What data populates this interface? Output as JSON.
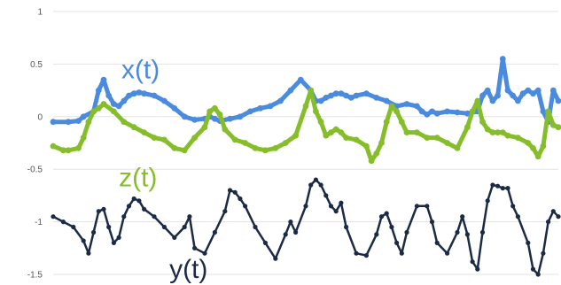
{
  "chart_data": {
    "type": "line",
    "title": "",
    "xlabel": "",
    "ylabel": "",
    "ylim": [
      -1.5,
      1
    ],
    "xlim": [
      0,
      100
    ],
    "grid": true,
    "legend": "none",
    "yticks": [
      {
        "value": 1,
        "label": "1"
      },
      {
        "value": 0.5,
        "label": "0.5"
      },
      {
        "value": 0,
        "label": "0"
      },
      {
        "value": -0.5,
        "label": "-0.5"
      },
      {
        "value": -1,
        "label": "-1"
      },
      {
        "value": -1.5,
        "label": "-1.5"
      }
    ],
    "series": [
      {
        "name": "x(t)",
        "color": "#4a8be0",
        "label_at": {
          "x": 13.5,
          "y": 0.45
        },
        "x": [
          0,
          3,
          5,
          6,
          8,
          9,
          10,
          11,
          12,
          13,
          14,
          15,
          16,
          17,
          18,
          20,
          22,
          24,
          26,
          28,
          30,
          31,
          32,
          33,
          35,
          37,
          39,
          41,
          43,
          45,
          47,
          49,
          51,
          52,
          53,
          54,
          55,
          56,
          57,
          58,
          59,
          60,
          62,
          64,
          66,
          68,
          70,
          72,
          73,
          74,
          75,
          76,
          78,
          80,
          82,
          84,
          85,
          86,
          87,
          88,
          89,
          90,
          91,
          92,
          93,
          94,
          95,
          96,
          97,
          98,
          99,
          100
        ],
        "values": [
          -0.05,
          -0.05,
          -0.04,
          0,
          0.05,
          0.25,
          0.35,
          0.2,
          0.12,
          0.1,
          0.15,
          0.2,
          0.22,
          0.23,
          0.22,
          0.2,
          0.15,
          0.08,
          0.0,
          -0.03,
          -0.02,
          0,
          -0.02,
          -0.04,
          -0.02,
          0.0,
          0.05,
          0.08,
          0.1,
          0.15,
          0.25,
          0.35,
          0.25,
          0.15,
          0.15,
          0.18,
          0.2,
          0.22,
          0.22,
          0.2,
          0.18,
          0.2,
          0.22,
          0.18,
          0.15,
          0.1,
          0.12,
          0.1,
          0.05,
          0.02,
          0.05,
          0.03,
          0.05,
          0.04,
          0.03,
          0.05,
          0.2,
          0.25,
          0.15,
          0.2,
          0.55,
          0.25,
          0.2,
          0.15,
          0.22,
          0.25,
          0.22,
          0.25,
          0.05,
          -0.05,
          0.25,
          0.15
        ]
      },
      {
        "name": "z(t)",
        "color": "#86bd2a",
        "label_at": {
          "x": 13,
          "y": -0.58
        },
        "x": [
          0,
          2,
          3,
          5,
          6,
          7,
          8,
          9,
          10,
          12,
          14,
          16,
          18,
          20,
          22,
          24,
          26,
          28,
          30,
          31,
          32,
          33,
          34,
          36,
          38,
          40,
          42,
          44,
          46,
          48,
          50,
          51,
          52,
          53,
          54,
          55,
          56,
          57,
          58,
          60,
          62,
          63,
          64,
          65,
          66,
          67,
          68,
          69,
          70,
          72,
          74,
          76,
          78,
          80,
          82,
          83,
          84,
          85,
          86,
          87,
          88,
          89,
          90,
          92,
          94,
          95,
          96,
          97,
          98,
          99,
          100
        ],
        "values": [
          -0.28,
          -0.32,
          -0.32,
          -0.3,
          -0.2,
          -0.05,
          0.05,
          0.08,
          0.12,
          0.05,
          -0.05,
          -0.1,
          -0.15,
          -0.2,
          -0.22,
          -0.3,
          -0.32,
          -0.2,
          -0.1,
          0.05,
          0.08,
          0.02,
          -0.12,
          -0.22,
          -0.25,
          -0.3,
          -0.32,
          -0.3,
          -0.25,
          -0.18,
          0.1,
          0.25,
          0.05,
          -0.05,
          -0.18,
          -0.15,
          -0.12,
          -0.15,
          -0.2,
          -0.22,
          -0.28,
          -0.42,
          -0.35,
          -0.25,
          -0.05,
          0.1,
          0.05,
          -0.05,
          -0.15,
          -0.15,
          -0.2,
          -0.2,
          -0.25,
          -0.3,
          -0.1,
          0.05,
          0.15,
          -0.05,
          -0.12,
          -0.15,
          -0.15,
          -0.15,
          -0.18,
          -0.2,
          -0.25,
          -0.3,
          -0.38,
          -0.28,
          0.05,
          -0.08,
          -0.1
        ]
      },
      {
        "name": "y(t)",
        "color": "#1b2a45",
        "label_at": {
          "x": 23,
          "y": -1.45
        },
        "x": [
          0,
          2,
          4,
          6,
          7,
          8,
          9,
          10,
          11,
          12,
          13,
          14,
          15,
          16,
          17,
          18,
          20,
          22,
          24,
          26,
          27,
          28,
          30,
          32,
          34,
          35,
          36,
          37,
          38,
          40,
          42,
          44,
          46,
          47,
          48,
          50,
          51,
          52,
          53,
          54,
          55,
          56,
          57,
          58,
          60,
          62,
          64,
          65,
          66,
          67,
          68,
          69,
          70,
          72,
          74,
          75,
          76,
          78,
          80,
          81,
          82,
          83,
          84,
          85,
          86,
          87,
          88,
          89,
          90,
          91,
          92,
          94,
          95,
          96,
          97,
          98,
          99,
          100
        ],
        "values": [
          -0.95,
          -1.0,
          -1.05,
          -1.18,
          -1.3,
          -1.1,
          -0.9,
          -0.88,
          -1.05,
          -1.2,
          -1.15,
          -0.95,
          -0.85,
          -0.78,
          -0.8,
          -0.88,
          -0.95,
          -1.05,
          -1.15,
          -1.05,
          -0.95,
          -1.25,
          -1.3,
          -1.1,
          -0.9,
          -0.7,
          -0.72,
          -0.78,
          -0.85,
          -1.05,
          -1.2,
          -1.35,
          -1.12,
          -1.0,
          -1.1,
          -0.85,
          -0.65,
          -0.6,
          -0.65,
          -0.75,
          -0.85,
          -0.9,
          -0.82,
          -1.05,
          -1.3,
          -1.32,
          -1.12,
          -0.95,
          -0.92,
          -1.05,
          -1.2,
          -1.3,
          -1.1,
          -0.85,
          -0.85,
          -1.0,
          -1.2,
          -1.3,
          -1.1,
          -0.95,
          -1.12,
          -1.38,
          -1.45,
          -1.1,
          -0.8,
          -0.65,
          -0.66,
          -0.68,
          -0.68,
          -0.85,
          -0.95,
          -1.2,
          -1.45,
          -1.5,
          -1.3,
          -1.0,
          -0.9,
          -0.95
        ]
      }
    ]
  }
}
